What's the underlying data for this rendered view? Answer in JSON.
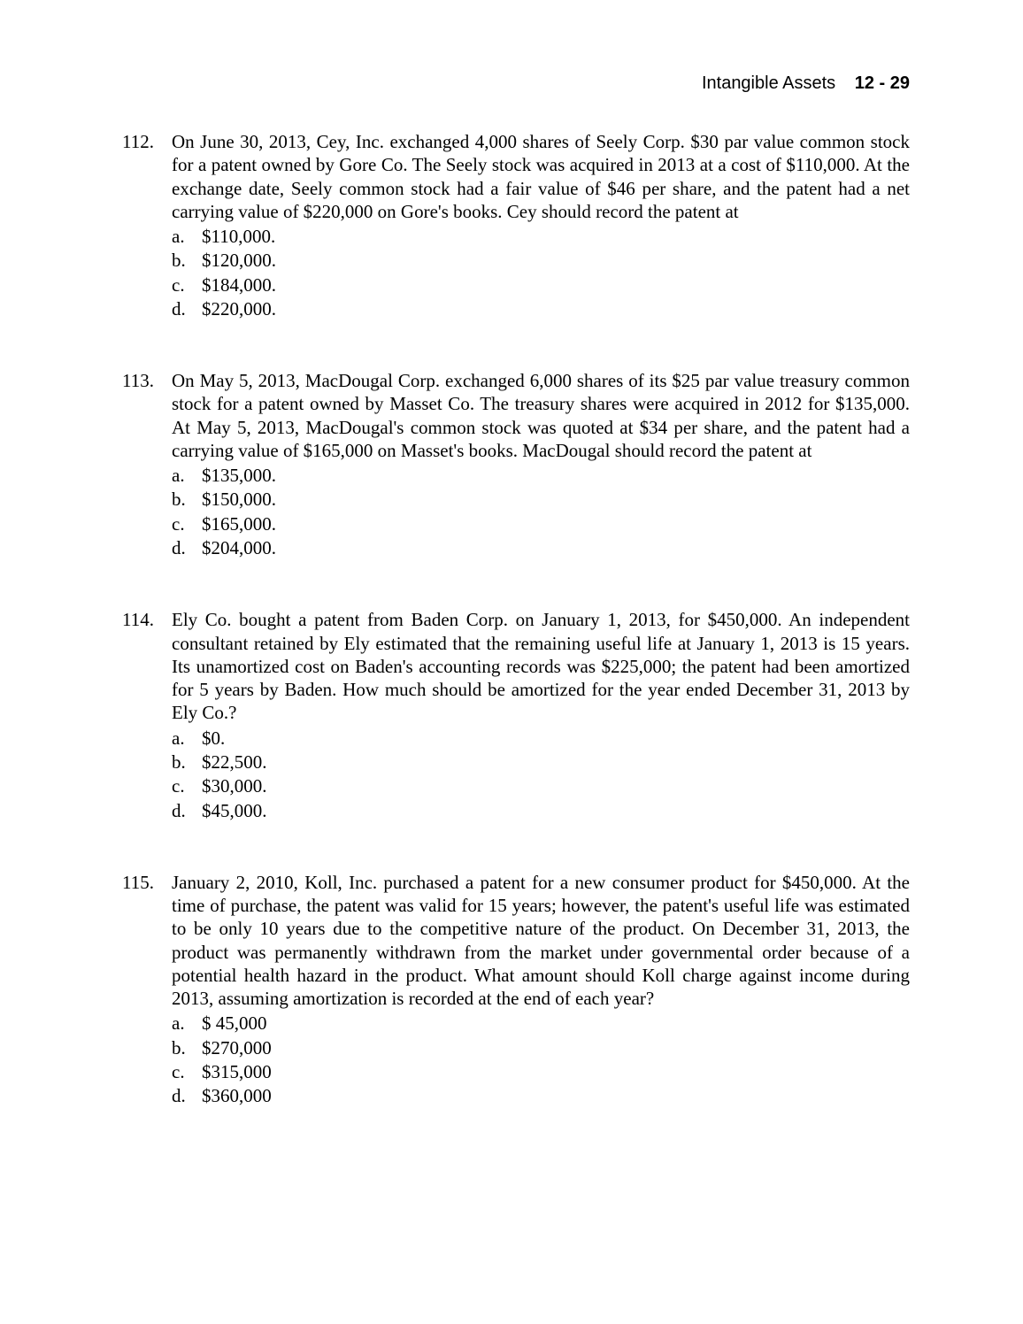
{
  "header": {
    "title": "Intangible Assets",
    "page": "12 - 29"
  },
  "questions": [
    {
      "number": "112.",
      "text": "On June 30, 2013, Cey, Inc. exchanged 4,000 shares of Seely Corp. $30 par value common stock for a patent owned by Gore Co. The Seely stock was acquired in 2013 at a cost of $110,000. At the exchange date, Seely common stock had a fair value of $46 per share, and the patent had a net carrying value of $220,000 on Gore's books. Cey should record the patent at",
      "choices": [
        {
          "letter": "a.",
          "text": "$110,000."
        },
        {
          "letter": "b.",
          "text": "$120,000."
        },
        {
          "letter": "c.",
          "text": "$184,000."
        },
        {
          "letter": "d.",
          "text": "$220,000."
        }
      ]
    },
    {
      "number": "113.",
      "text": "On May 5, 2013, MacDougal Corp. exchanged 6,000 shares of its $25 par value treasury common stock for a patent owned by Masset Co. The treasury shares were acquired in 2012 for $135,000. At May 5, 2013, MacDougal's common stock was quoted at $34 per share, and the patent had a carrying value of $165,000 on Masset's books. MacDougal should record the patent at",
      "choices": [
        {
          "letter": "a.",
          "text": "$135,000."
        },
        {
          "letter": "b.",
          "text": "$150,000."
        },
        {
          "letter": "c.",
          "text": "$165,000."
        },
        {
          "letter": "d.",
          "text": "$204,000."
        }
      ]
    },
    {
      "number": "114.",
      "text": "Ely Co. bought a patent from Baden Corp. on January 1, 2013, for $450,000. An independent consultant retained by Ely estimated that the remaining useful life at January 1, 2013 is 15 years. Its unamortized cost on Baden's accounting records was $225,000; the patent had been amortized for 5 years by Baden. How much should be amortized for the year ended December 31, 2013 by Ely Co.?",
      "choices": [
        {
          "letter": "a.",
          "text": "$0."
        },
        {
          "letter": "b.",
          "text": "$22,500."
        },
        {
          "letter": "c.",
          "text": "$30,000."
        },
        {
          "letter": "d.",
          "text": "$45,000."
        }
      ]
    },
    {
      "number": "115.",
      "text": "January 2, 2010, Koll, Inc. purchased a patent for a new consumer product for $450,000. At the time of purchase, the patent was valid for 15 years; however, the patent's useful life was estimated to be only 10 years due to the competitive nature of the product. On December 31, 2013, the product was permanently withdrawn from the market under governmental order because of a potential health hazard in the product. What amount should Koll charge against income during 2013, assuming amortization is recorded at the end of each year?",
      "choices": [
        {
          "letter": "a.",
          "text": "$  45,000"
        },
        {
          "letter": "b.",
          "text": "$270,000"
        },
        {
          "letter": "c.",
          "text": "$315,000"
        },
        {
          "letter": "d.",
          "text": "$360,000"
        }
      ]
    }
  ]
}
